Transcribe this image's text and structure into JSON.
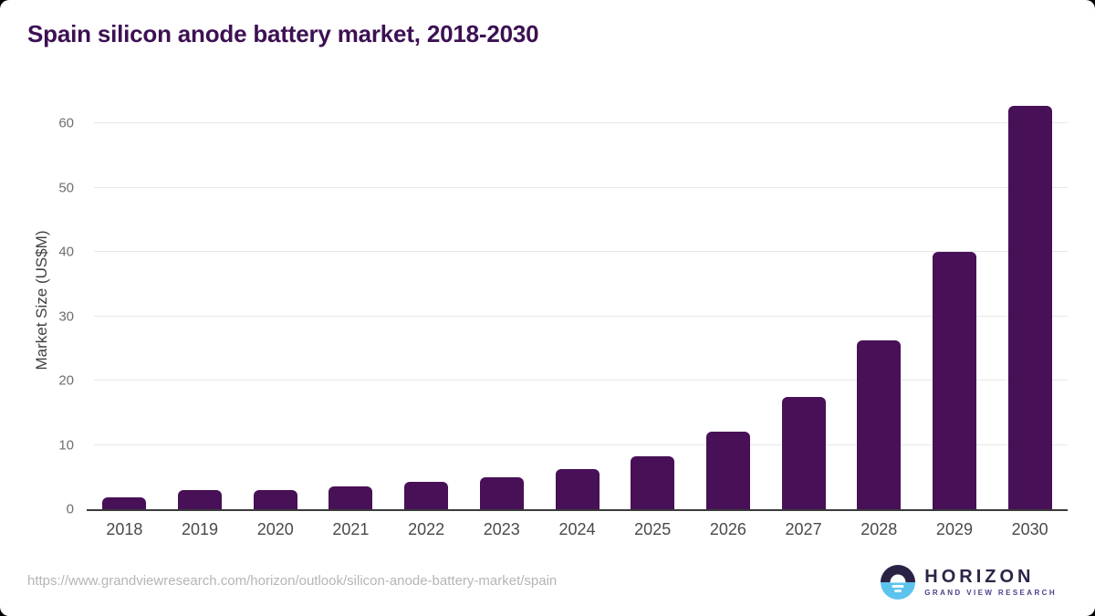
{
  "title": "Spain silicon anode battery market, 2018-2030",
  "source_url": "https://www.grandviewresearch.com/horizon/outlook/silicon-anode-battery-market/spain",
  "logo": {
    "name": "HORIZON",
    "subtext": "GRAND VIEW RESEARCH"
  },
  "colors": {
    "bar": "#481056",
    "title": "#3d1053",
    "gridline": "#e8e8e8",
    "axis_line": "#3a3a3a",
    "ytick_label": "#6e6e6e",
    "xtick_label": "#4a4a4a",
    "url_text": "#b5b5b5",
    "logo_dark": "#2b2145",
    "logo_blue": "#5cc3ee"
  },
  "chart_data": {
    "type": "bar",
    "title": "Spain silicon anode battery market, 2018-2030",
    "xlabel": "",
    "ylabel": "Market Size (US$M)",
    "categories": [
      "2018",
      "2019",
      "2020",
      "2021",
      "2022",
      "2023",
      "2024",
      "2025",
      "2026",
      "2027",
      "2028",
      "2029",
      "2030"
    ],
    "values": [
      1.8,
      3.0,
      3.0,
      3.5,
      4.3,
      5.0,
      6.3,
      8.3,
      12.0,
      17.5,
      26.2,
      40.0,
      62.8
    ],
    "yticks": [
      0,
      10,
      20,
      30,
      40,
      50,
      60
    ],
    "ylim": [
      0,
      65
    ],
    "grid": true,
    "legend": "none"
  }
}
